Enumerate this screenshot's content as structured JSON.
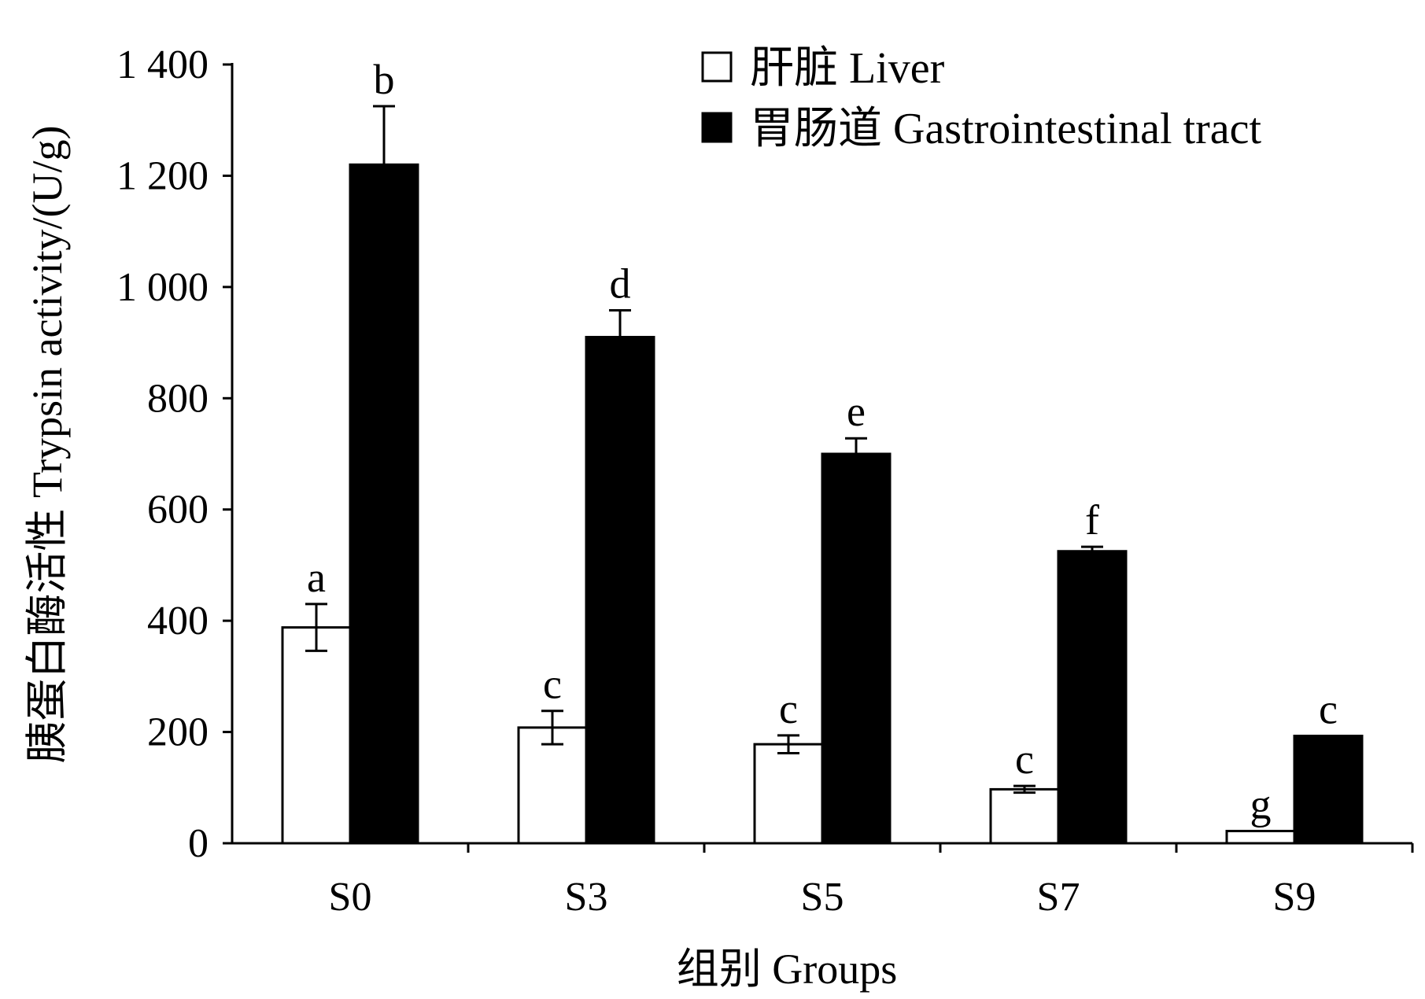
{
  "chart_data": {
    "type": "bar",
    "categories": [
      "S0",
      "S3",
      "S5",
      "S7",
      "S9"
    ],
    "series": [
      {
        "name": "肝脏  Liver",
        "color": "#ffffff",
        "values": [
          388,
          208,
          178,
          97,
          22
        ],
        "errors": [
          42,
          30,
          16,
          6,
          0
        ],
        "letters": [
          "a",
          "c",
          "c",
          "c",
          "g"
        ]
      },
      {
        "name": "胃肠道  Gastrointestinal tract",
        "color": "#000000",
        "values": [
          1220,
          910,
          700,
          525,
          193
        ],
        "errors": [
          105,
          48,
          28,
          8,
          0
        ],
        "letters": [
          "b",
          "d",
          "e",
          "f",
          "c"
        ]
      }
    ],
    "xlabel": "组别 Groups",
    "ylabel": "胰蛋白酶活性  Trypsin activity/(U/g)",
    "ylim": [
      0,
      1400
    ],
    "yticks": [
      0,
      200,
      400,
      600,
      800,
      1000,
      1200,
      1400
    ],
    "ytick_labels": [
      "0",
      "200",
      "400",
      "600",
      "800",
      "1 000",
      "1 200",
      "1 400"
    ],
    "legend_position": "top-right",
    "grid": false
  }
}
